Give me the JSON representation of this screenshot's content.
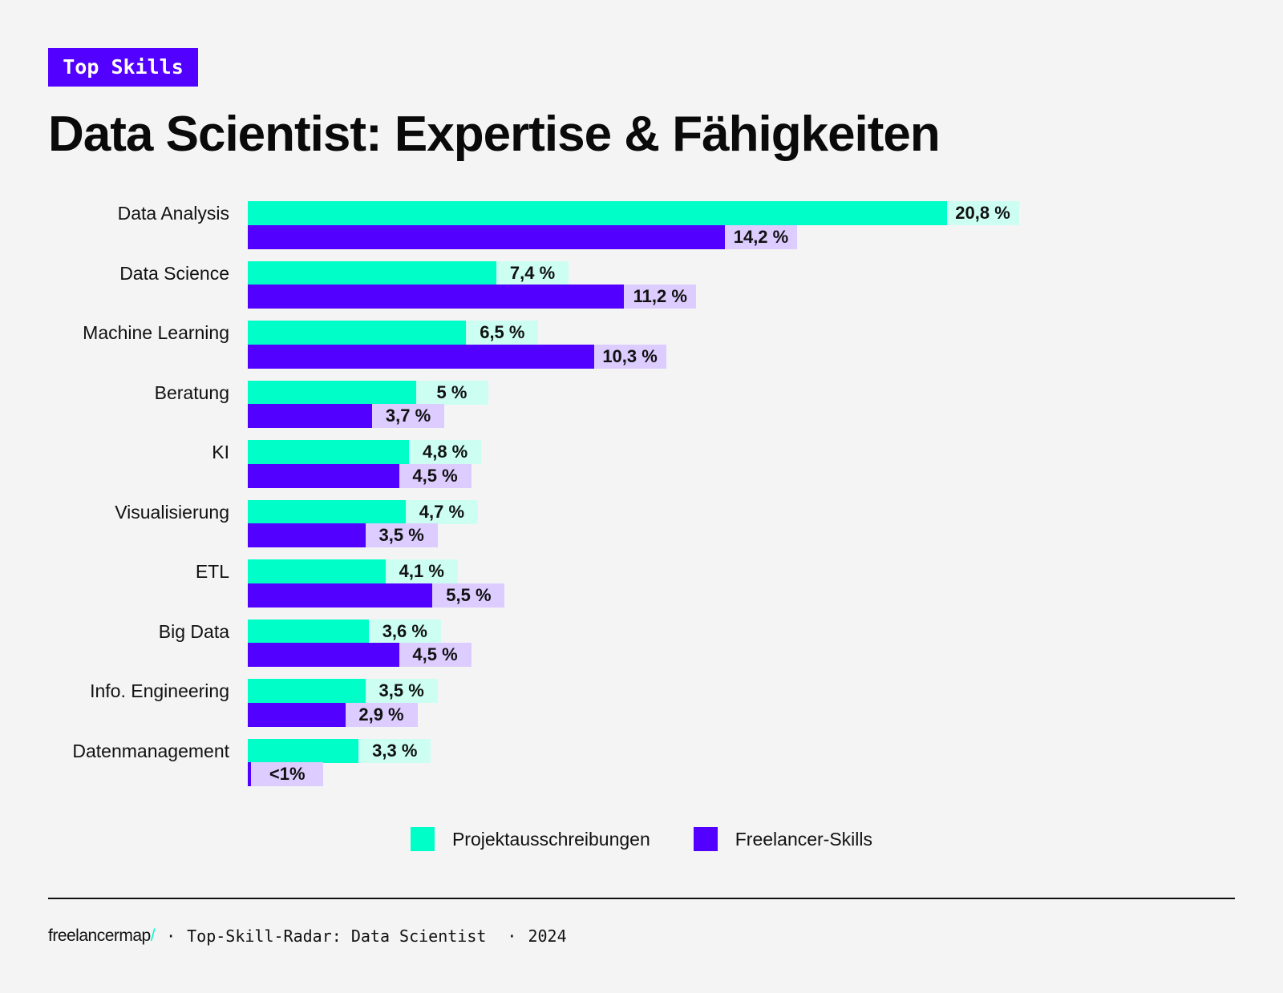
{
  "badge": "Top Skills",
  "title": "Data Scientist: Expertise & Fähigkeiten",
  "colors": {
    "projekt": "#00ffc8",
    "projekt_label_bg": "#ccfff1",
    "freelancer": "#5200ff",
    "freelancer_label_bg": "#dcccff",
    "background": "#f4f4f4"
  },
  "chart_data": {
    "type": "bar",
    "orientation": "horizontal",
    "title": "Data Scientist: Expertise & Fähigkeiten",
    "categories": [
      "Data Analysis",
      "Data Science",
      "Machine Learning",
      "Beratung",
      "KI",
      "Visualisierung",
      "ETL",
      "Big Data",
      "Info. Engineering",
      "Datenmanagement"
    ],
    "series": [
      {
        "name": "Projektausschreibungen",
        "values": [
          20.8,
          7.4,
          6.5,
          5,
          4.8,
          4.7,
          4.1,
          3.6,
          3.5,
          3.3
        ],
        "labels": [
          "20,8 %",
          "7,4 %",
          "6,5 %",
          "5 %",
          "4,8 %",
          "4,7 %",
          "4,1 %",
          "3,6 %",
          "3,5 %",
          "3,3 %"
        ]
      },
      {
        "name": "Freelancer-Skills",
        "values": [
          14.2,
          11.2,
          10.3,
          3.7,
          4.5,
          3.5,
          5.5,
          4.5,
          2.9,
          0.1
        ],
        "labels": [
          "14,2 %",
          "11,2 %",
          "10,3 %",
          "3,7 %",
          "4,5 %",
          "3,5 %",
          "5,5 %",
          "4,5 %",
          "2,9 %",
          "<1%"
        ]
      }
    ],
    "unit": "%",
    "grid": false,
    "legend": "bottom"
  },
  "legend": [
    "Projektausschreibungen",
    "Freelancer-Skills"
  ],
  "footer": {
    "logo": "freelancermap",
    "slash": "/",
    "sep1": "·",
    "text": "Top-Skill-Radar: Data Scientist",
    "sep2": "·",
    "year": "2024"
  }
}
